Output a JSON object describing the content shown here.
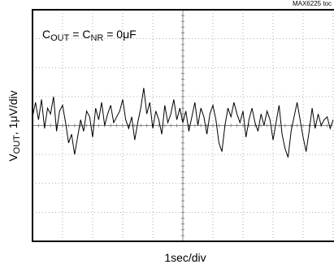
{
  "chart_data": {
    "type": "line",
    "tag": "MAX6225 toc",
    "annotation": [
      "C",
      "OUT",
      " = C",
      "NR",
      " = 0μF"
    ],
    "y_label": [
      "V",
      "OUT",
      ", 1μV/div"
    ],
    "x_label": "1sec/div",
    "xlim": [
      0,
      10
    ],
    "ylim": [
      -4,
      4
    ],
    "xticks": [
      0,
      1,
      2,
      3,
      4,
      5,
      6,
      7,
      8,
      9,
      10
    ],
    "yticks": [
      -4,
      -3,
      -2,
      -1,
      0,
      1,
      2,
      3,
      4
    ],
    "grid": true,
    "color": "#000000",
    "x": [
      0,
      0.1,
      0.2,
      0.3,
      0.4,
      0.5,
      0.6,
      0.7,
      0.8,
      0.9,
      1,
      1.1,
      1.2,
      1.3,
      1.4,
      1.5,
      1.6,
      1.7,
      1.8,
      1.9,
      2,
      2.1,
      2.2,
      2.3,
      2.4,
      2.5,
      2.6,
      2.7,
      2.8,
      2.9,
      3,
      3.1,
      3.2,
      3.3,
      3.4,
      3.5,
      3.6,
      3.7,
      3.8,
      3.9,
      4,
      4.1,
      4.2,
      4.3,
      4.4,
      4.5,
      4.6,
      4.7,
      4.8,
      4.9,
      5,
      5.1,
      5.2,
      5.3,
      5.4,
      5.5,
      5.6,
      5.7,
      5.8,
      5.9,
      6,
      6.1,
      6.2,
      6.3,
      6.4,
      6.5,
      6.6,
      6.7,
      6.8,
      6.9,
      7,
      7.1,
      7.2,
      7.3,
      7.4,
      7.5,
      7.6,
      7.7,
      7.8,
      7.9,
      8,
      8.1,
      8.2,
      8.3,
      8.4,
      8.5,
      8.6,
      8.7,
      8.8,
      8.9,
      9,
      9.1,
      9.2,
      9.3,
      9.4,
      9.5,
      9.6,
      9.7,
      9.8,
      9.9,
      10
    ],
    "values": [
      0.3,
      0.8,
      0.2,
      0.9,
      -0.1,
      0.6,
      0.4,
      1.0,
      -0.2,
      0.5,
      0.7,
      0.1,
      -0.6,
      -0.3,
      -1.0,
      -0.4,
      0.2,
      -0.2,
      0.5,
      0.3,
      -0.4,
      0.6,
      0.2,
      0.8,
      0.0,
      0.4,
      0.7,
      0.1,
      0.3,
      0.5,
      0.9,
      0.2,
      -0.1,
      0.3,
      -0.5,
      0.1,
      0.6,
      1.3,
      0.4,
      0.8,
      -0.1,
      0.5,
      0.2,
      -0.3,
      0.7,
      0.1,
      0.4,
      0.9,
      0.2,
      0.6,
      0.1,
      0.5,
      -0.2,
      0.3,
      0.8,
      0.0,
      0.6,
      0.3,
      -0.3,
      0.4,
      0.7,
      0.2,
      -0.6,
      -0.9,
      0.0,
      0.6,
      0.3,
      0.8,
      0.4,
      0.1,
      0.5,
      -0.4,
      0.2,
      0.6,
      0.1,
      -0.2,
      0.4,
      0.0,
      0.5,
      0.2,
      -0.5,
      0.1,
      0.7,
      -0.3,
      -0.8,
      -1.1,
      -0.2,
      0.3,
      0.8,
      0.2,
      -0.4,
      -0.9,
      -0.2,
      0.6,
      -0.1,
      0.4,
      0.0,
      0.2,
      0.3,
      -0.1,
      0.2
    ]
  }
}
